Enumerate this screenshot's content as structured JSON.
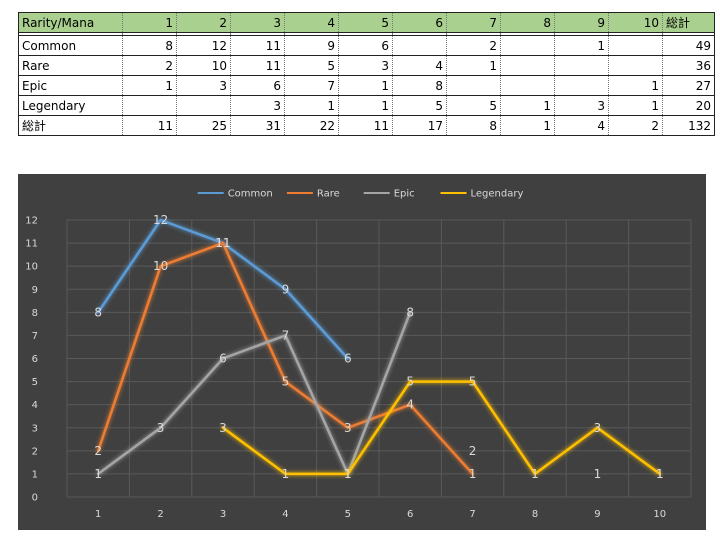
{
  "table": {
    "header": [
      "Rarity/Mana",
      "1",
      "2",
      "3",
      "4",
      "5",
      "6",
      "7",
      "8",
      "9",
      "10",
      "総計"
    ],
    "rows": [
      [
        "Common",
        "8",
        "12",
        "11",
        "9",
        "6",
        "",
        "2",
        "",
        "1",
        "",
        "49"
      ],
      [
        "Rare",
        "2",
        "10",
        "11",
        "5",
        "3",
        "4",
        "1",
        "",
        "",
        "",
        "36"
      ],
      [
        "Epic",
        "1",
        "3",
        "6",
        "7",
        "1",
        "8",
        "",
        "",
        "",
        "1",
        "27"
      ],
      [
        "Legendary",
        "",
        "",
        "3",
        "1",
        "1",
        "5",
        "5",
        "1",
        "3",
        "1",
        "20"
      ],
      [
        "総計",
        "11",
        "25",
        "31",
        "22",
        "11",
        "17",
        "8",
        "1",
        "4",
        "2",
        "132"
      ]
    ]
  },
  "chart_data": {
    "type": "line",
    "categories": [
      "1",
      "2",
      "3",
      "4",
      "5",
      "6",
      "7",
      "8",
      "9",
      "10"
    ],
    "ylim": [
      0,
      12
    ],
    "yticks": [
      "0",
      "1",
      "2",
      "3",
      "4",
      "5",
      "6",
      "7",
      "8",
      "9",
      "10",
      "11",
      "12"
    ],
    "grid": true,
    "legend_position": "top",
    "series": [
      {
        "name": "Common",
        "color": "#5b9bd5",
        "values": [
          8,
          12,
          11,
          9,
          6,
          null,
          2,
          null,
          1,
          null
        ]
      },
      {
        "name": "Rare",
        "color": "#ed7d31",
        "values": [
          2,
          10,
          11,
          5,
          3,
          4,
          1,
          null,
          null,
          null
        ]
      },
      {
        "name": "Epic",
        "color": "#a5a5a5",
        "values": [
          1,
          3,
          6,
          7,
          1,
          8,
          null,
          null,
          null,
          1
        ]
      },
      {
        "name": "Legendary",
        "color": "#ffc000",
        "values": [
          null,
          null,
          3,
          1,
          1,
          5,
          5,
          1,
          3,
          1
        ]
      }
    ]
  }
}
